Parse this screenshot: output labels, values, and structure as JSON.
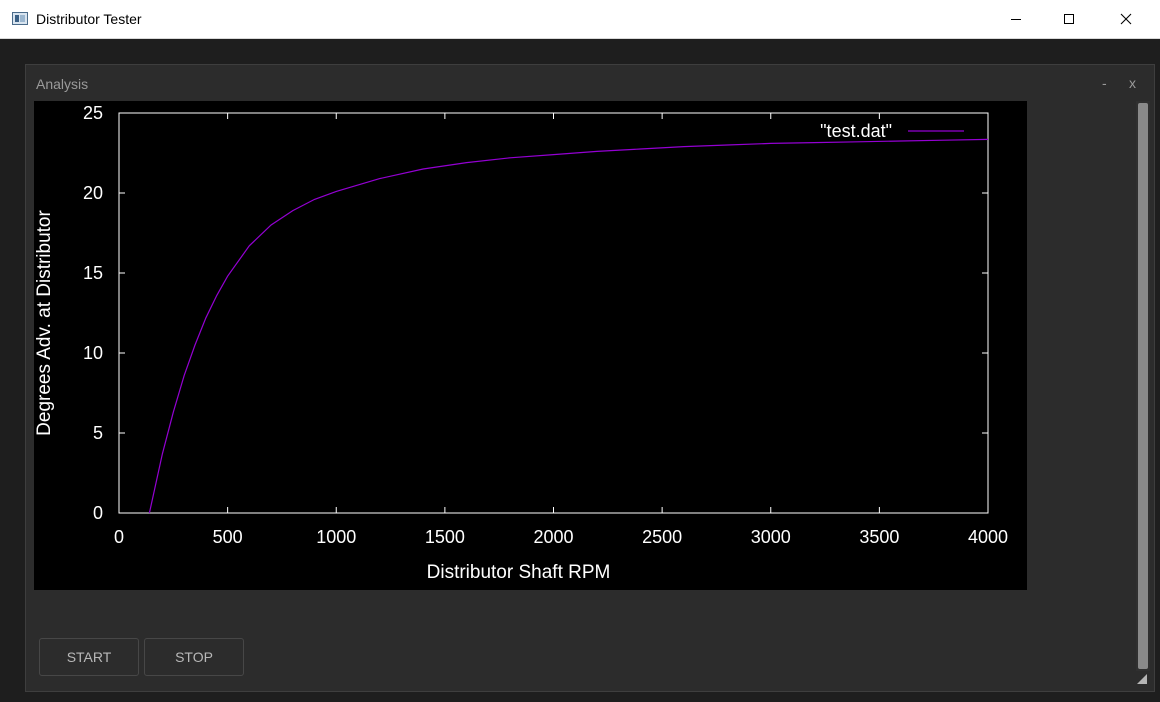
{
  "window": {
    "title": "Distributor Tester"
  },
  "panel": {
    "title": "Analysis",
    "minimize_label": "-",
    "close_label": "x"
  },
  "controls": {
    "start_label": "START",
    "stop_label": "STOP"
  },
  "colors": {
    "series": "#9400d3",
    "plot_bg": "#000000",
    "axis": "#ffffff"
  },
  "chart_data": {
    "type": "line",
    "xlabel": "Distributor Shaft RPM",
    "ylabel": "Degrees Adv. at Distributor",
    "xlim": [
      0,
      4000
    ],
    "ylim": [
      0,
      25
    ],
    "xticks": [
      0,
      500,
      1000,
      1500,
      2000,
      2500,
      3000,
      3500,
      4000
    ],
    "yticks": [
      0,
      5,
      10,
      15,
      20,
      25
    ],
    "legend_position": "top-right",
    "series": [
      {
        "name": "\"test.dat\"",
        "x": [
          140,
          200,
          250,
          300,
          350,
          400,
          450,
          500,
          600,
          700,
          800,
          900,
          1000,
          1200,
          1400,
          1600,
          1800,
          2000,
          2200,
          2400,
          2600,
          2800,
          3000,
          3200,
          3400,
          3600,
          3800,
          4000
        ],
        "y": [
          0,
          3.7,
          6.3,
          8.6,
          10.5,
          12.2,
          13.6,
          14.8,
          16.7,
          18.0,
          18.9,
          19.6,
          20.1,
          20.9,
          21.5,
          21.9,
          22.2,
          22.4,
          22.6,
          22.75,
          22.9,
          23.0,
          23.1,
          23.15,
          23.2,
          23.25,
          23.3,
          23.35
        ]
      }
    ]
  }
}
